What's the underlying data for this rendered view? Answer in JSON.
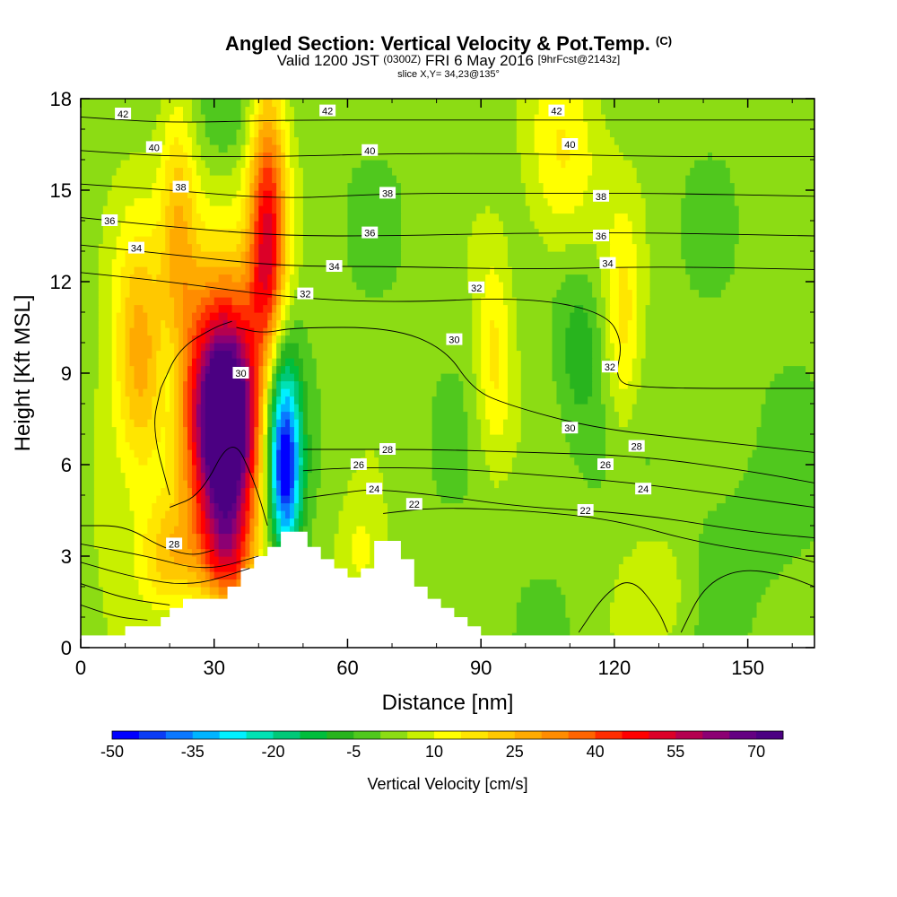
{
  "title": {
    "main": "Angled Section: Vertical Velocity & Pot.Temp.",
    "main_unit": "(C)",
    "valid_prefix": "Valid 1200 JST",
    "valid_utc": "(0300Z)",
    "valid_date": "FRI 6 May 2016",
    "valid_fcst": "[9hrFcst@2143z]",
    "slice": "slice X,Y= 34,23@135°"
  },
  "chart_data": {
    "type": "heatmap",
    "xlabel": "Distance [nm]",
    "ylabel": "Height [Kft MSL]",
    "xlim": [
      0,
      165
    ],
    "ylim": [
      0,
      18
    ],
    "x_ticks": [
      0,
      30,
      60,
      90,
      120,
      150
    ],
    "y_ticks": [
      0,
      3,
      6,
      9,
      12,
      15,
      18
    ],
    "colorbar": {
      "label": "Vertical Velocity [cm/s]",
      "min": -50,
      "max": 75,
      "step": 5,
      "tick_labels": [
        "-50",
        "-35",
        "-20",
        "-5",
        "10",
        "25",
        "40",
        "55",
        "70"
      ],
      "colors": [
        "#0000ff",
        "#0a3cf5",
        "#0a78ff",
        "#00b4ff",
        "#00f0ff",
        "#00e1b4",
        "#00c878",
        "#00be3c",
        "#28b41e",
        "#50c81e",
        "#8cdc14",
        "#c8f000",
        "#ffff00",
        "#ffe600",
        "#ffc800",
        "#ffaa00",
        "#ff8c00",
        "#ff6400",
        "#ff2d00",
        "#ff0000",
        "#dc0028",
        "#b40050",
        "#8c0073",
        "#640082",
        "#4b0082"
      ]
    },
    "field_sources": [
      {
        "x": 33,
        "y": 7.2,
        "value": 70,
        "sx": 5,
        "sy": 2.6
      },
      {
        "x": 30,
        "y": 8.5,
        "value": 30,
        "sx": 7,
        "sy": 4
      },
      {
        "x": 42,
        "y": 12.5,
        "value": 40,
        "sx": 3,
        "sy": 2.5
      },
      {
        "x": 42,
        "y": 16.5,
        "value": 20,
        "sx": 3,
        "sy": 2.5
      },
      {
        "x": 22,
        "y": 14.0,
        "value": 20,
        "sx": 3,
        "sy": 3
      },
      {
        "x": 13,
        "y": 9.5,
        "value": 25,
        "sx": 4,
        "sy": 3
      },
      {
        "x": 20,
        "y": 3.0,
        "value": 18,
        "sx": 5,
        "sy": 1.3
      },
      {
        "x": 46,
        "y": 5.5,
        "value": -40,
        "sx": 2.5,
        "sy": 1.8
      },
      {
        "x": 45,
        "y": 8.0,
        "value": -25,
        "sx": 3,
        "sy": 2.2
      },
      {
        "x": 33,
        "y": 3.0,
        "value": 25,
        "sx": 4,
        "sy": 1.2
      },
      {
        "x": 93,
        "y": 9.5,
        "value": 15,
        "sx": 3,
        "sy": 2.5
      },
      {
        "x": 108,
        "y": 16.0,
        "value": 15,
        "sx": 6,
        "sy": 2.5
      },
      {
        "x": 122,
        "y": 10.5,
        "value": 15,
        "sx": 3,
        "sy": 2.5
      },
      {
        "x": 112,
        "y": 9.8,
        "value": -10,
        "sx": 4,
        "sy": 2.2
      },
      {
        "x": 32,
        "y": 17.5,
        "value": -8,
        "sx": 6,
        "sy": 1.2
      },
      {
        "x": 20,
        "y": 9.0,
        "value": -8,
        "sx": 2,
        "sy": 1.5
      },
      {
        "x": 148,
        "y": 3.5,
        "value": -4,
        "sx": 12,
        "sy": 2
      },
      {
        "x": 5,
        "y": 6.0,
        "value": 5,
        "sx": 4,
        "sy": 3
      },
      {
        "x": 63,
        "y": 3.0,
        "value": 10,
        "sx": 4,
        "sy": 1.5
      },
      {
        "x": 130,
        "y": 2.0,
        "value": 8,
        "sx": 6,
        "sy": 1.5
      }
    ],
    "terrain": {
      "x": [
        10,
        15,
        18,
        20,
        23,
        26,
        30,
        33,
        36,
        39,
        42,
        45,
        51,
        54,
        57,
        60,
        63,
        66,
        72,
        75,
        78,
        81,
        84,
        87,
        90
      ],
      "height": [
        0.7,
        0.7,
        1.0,
        1.3,
        1.6,
        1.6,
        1.6,
        2.0,
        2.6,
        3.0,
        3.3,
        3.8,
        3.3,
        2.9,
        2.6,
        2.3,
        2.6,
        3.5,
        2.9,
        2.0,
        1.6,
        1.3,
        1.0,
        0.7,
        0.4
      ]
    },
    "theta_contours": [
      {
        "label": "42",
        "points": [
          [
            0,
            17.4
          ],
          [
            20,
            17.2
          ],
          [
            45,
            17.3
          ],
          [
            70,
            17.3
          ],
          [
            100,
            17.3
          ],
          [
            130,
            17.3
          ],
          [
            165,
            17.3
          ]
        ]
      },
      {
        "label": "40",
        "points": [
          [
            0,
            16.3
          ],
          [
            20,
            16.1
          ],
          [
            45,
            16.1
          ],
          [
            70,
            16.2
          ],
          [
            100,
            16.2
          ],
          [
            130,
            16.1
          ],
          [
            165,
            16.1
          ]
        ]
      },
      {
        "label": "38",
        "points": [
          [
            0,
            15.2
          ],
          [
            20,
            15.0
          ],
          [
            45,
            14.7
          ],
          [
            70,
            14.9
          ],
          [
            100,
            14.9
          ],
          [
            130,
            14.9
          ],
          [
            165,
            14.8
          ]
        ]
      },
      {
        "label": "36",
        "points": [
          [
            0,
            14.1
          ],
          [
            20,
            13.8
          ],
          [
            45,
            13.5
          ],
          [
            70,
            13.5
          ],
          [
            100,
            13.6
          ],
          [
            130,
            13.6
          ],
          [
            165,
            13.5
          ]
        ]
      },
      {
        "label": "34",
        "points": [
          [
            0,
            13.2
          ],
          [
            20,
            12.9
          ],
          [
            45,
            12.5
          ],
          [
            70,
            12.5
          ],
          [
            100,
            12.4
          ],
          [
            130,
            12.5
          ],
          [
            165,
            12.4
          ]
        ]
      },
      {
        "label": "32",
        "points": [
          [
            0,
            12.3
          ],
          [
            20,
            12.0
          ],
          [
            45,
            11.5
          ],
          [
            70,
            11.3
          ],
          [
            100,
            11.5
          ],
          [
            118,
            11.0
          ],
          [
            122,
            10.0
          ],
          [
            120,
            8.8
          ],
          [
            125,
            8.5
          ],
          [
            165,
            8.5
          ]
        ]
      },
      {
        "label": "30",
        "points": [
          [
            35,
            10.5
          ],
          [
            41,
            10.3
          ],
          [
            48,
            10.5
          ],
          [
            70,
            10.5
          ],
          [
            82,
            9.8
          ],
          [
            88,
            8.5
          ],
          [
            95,
            8.0
          ],
          [
            115,
            7.2
          ],
          [
            140,
            6.8
          ],
          [
            165,
            6.4
          ]
        ]
      },
      {
        "label": "28",
        "points": [
          [
            0,
            4.0
          ],
          [
            10,
            4.0
          ],
          [
            18,
            3.3
          ],
          [
            25,
            3.0
          ],
          [
            30,
            3.2
          ]
        ]
      },
      {
        "label": "28",
        "points": [
          [
            50,
            6.5
          ],
          [
            60,
            6.5
          ],
          [
            80,
            6.5
          ],
          [
            100,
            6.4
          ],
          [
            125,
            6.3
          ],
          [
            150,
            5.8
          ],
          [
            165,
            5.4
          ]
        ]
      },
      {
        "label": "26",
        "points": [
          [
            50,
            5.8
          ],
          [
            60,
            5.9
          ],
          [
            80,
            5.9
          ],
          [
            100,
            5.7
          ],
          [
            125,
            5.4
          ],
          [
            150,
            4.9
          ],
          [
            165,
            4.6
          ]
        ]
      },
      {
        "label": "24",
        "points": [
          [
            50,
            4.9
          ],
          [
            60,
            5.1
          ],
          [
            66,
            5.2
          ],
          [
            80,
            5.0
          ],
          [
            100,
            4.6
          ],
          [
            125,
            4.4
          ],
          [
            150,
            3.8
          ],
          [
            165,
            3.6
          ]
        ]
      },
      {
        "label": "22",
        "points": [
          [
            68,
            4.4
          ],
          [
            80,
            4.6
          ],
          [
            100,
            4.5
          ],
          [
            120,
            4.2
          ],
          [
            140,
            3.4
          ],
          [
            160,
            3.0
          ],
          [
            165,
            2.8
          ]
        ]
      },
      {
        "label": "",
        "points": [
          [
            0,
            3.4
          ],
          [
            15,
            3.0
          ],
          [
            28,
            2.5
          ],
          [
            40,
            3.0
          ]
        ]
      },
      {
        "label": "",
        "points": [
          [
            0,
            2.8
          ],
          [
            12,
            2.3
          ],
          [
            25,
            2.0
          ],
          [
            38,
            2.6
          ]
        ]
      },
      {
        "label": "",
        "points": [
          [
            0,
            2.1
          ],
          [
            10,
            1.6
          ],
          [
            20,
            1.4
          ]
        ]
      },
      {
        "label": "",
        "points": [
          [
            0,
            1.4
          ],
          [
            8,
            1.0
          ],
          [
            15,
            0.9
          ]
        ]
      },
      {
        "label": "",
        "points": [
          [
            135,
            0.5
          ],
          [
            140,
            2.0
          ],
          [
            148,
            2.6
          ],
          [
            158,
            2.4
          ],
          [
            165,
            2.0
          ]
        ]
      },
      {
        "label": "",
        "points": [
          [
            112,
            0.5
          ],
          [
            118,
            1.8
          ],
          [
            124,
            2.3
          ],
          [
            130,
            1.2
          ],
          [
            132,
            0.5
          ]
        ]
      },
      {
        "label": "",
        "points": [
          [
            20,
            4.6
          ],
          [
            27,
            5.0
          ],
          [
            34,
            7.0
          ],
          [
            39,
            5.5
          ],
          [
            42,
            4.0
          ]
        ]
      },
      {
        "label": "",
        "points": [
          [
            18,
            8.5
          ],
          [
            22,
            9.8
          ],
          [
            30,
            10.5
          ],
          [
            34,
            10.7
          ]
        ]
      },
      {
        "label": "",
        "points": [
          [
            18,
            8.5
          ],
          [
            16,
            7.2
          ],
          [
            20,
            5.0
          ]
        ]
      }
    ],
    "contour_labels": [
      {
        "text": "42",
        "x": 9.5,
        "y": 17.5
      },
      {
        "text": "42",
        "x": 55.5,
        "y": 17.6
      },
      {
        "text": "42",
        "x": 107,
        "y": 17.6
      },
      {
        "text": "40",
        "x": 16.5,
        "y": 16.4
      },
      {
        "text": "40",
        "x": 65,
        "y": 16.3
      },
      {
        "text": "40",
        "x": 110,
        "y": 16.5
      },
      {
        "text": "38",
        "x": 22.5,
        "y": 15.1
      },
      {
        "text": "38",
        "x": 69,
        "y": 14.9
      },
      {
        "text": "38",
        "x": 117,
        "y": 14.8
      },
      {
        "text": "36",
        "x": 6.5,
        "y": 14.0
      },
      {
        "text": "36",
        "x": 65,
        "y": 13.6
      },
      {
        "text": "36",
        "x": 117,
        "y": 13.5
      },
      {
        "text": "34",
        "x": 12.5,
        "y": 13.1
      },
      {
        "text": "34",
        "x": 57,
        "y": 12.5
      },
      {
        "text": "34",
        "x": 118.5,
        "y": 12.6
      },
      {
        "text": "32",
        "x": 50.5,
        "y": 11.6
      },
      {
        "text": "32",
        "x": 89,
        "y": 11.8
      },
      {
        "text": "32",
        "x": 119,
        "y": 9.2
      },
      {
        "text": "30",
        "x": 36,
        "y": 9.0
      },
      {
        "text": "30",
        "x": 84,
        "y": 10.1
      },
      {
        "text": "30",
        "x": 110,
        "y": 7.2
      },
      {
        "text": "28",
        "x": 21,
        "y": 3.4
      },
      {
        "text": "28",
        "x": 69,
        "y": 6.5
      },
      {
        "text": "28",
        "x": 125,
        "y": 6.6
      },
      {
        "text": "26",
        "x": 62.5,
        "y": 6.0
      },
      {
        "text": "26",
        "x": 118,
        "y": 6.0
      },
      {
        "text": "24",
        "x": 66,
        "y": 5.2
      },
      {
        "text": "24",
        "x": 126.5,
        "y": 5.2
      },
      {
        "text": "22",
        "x": 75,
        "y": 4.7
      },
      {
        "text": "22",
        "x": 113.5,
        "y": 4.5
      }
    ]
  }
}
